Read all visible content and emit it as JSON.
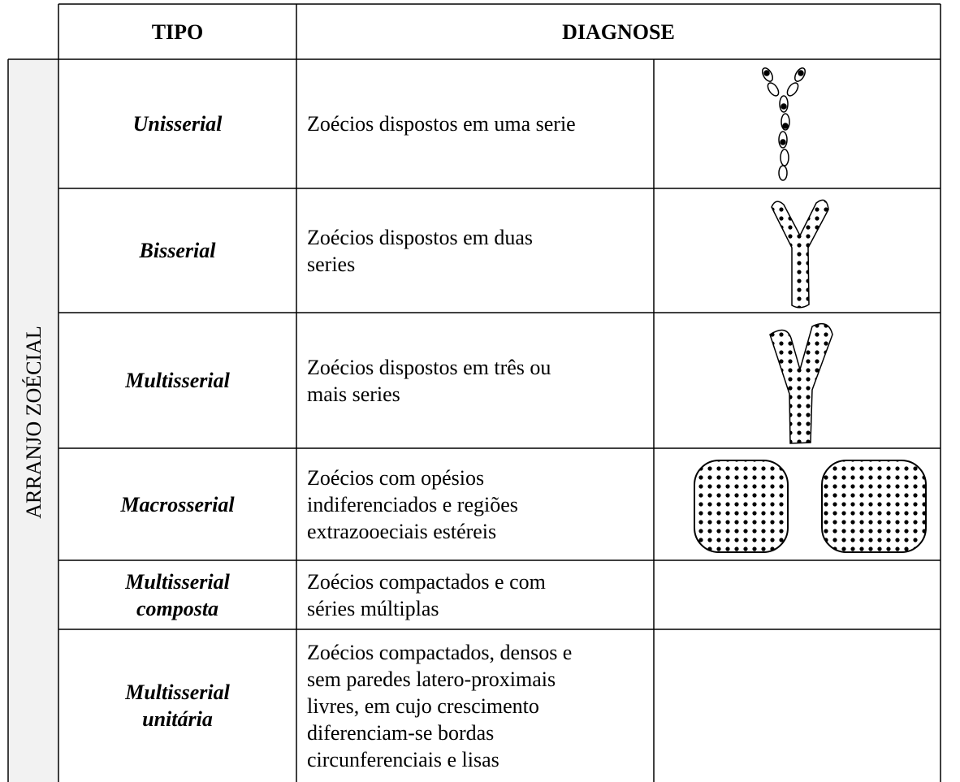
{
  "header": {
    "columns": [
      "TIPO",
      "DIAGNOSE"
    ]
  },
  "side_label": "ARRANJO ZOÉCIAL",
  "rows": [
    {
      "tipo": [
        "Unisserial"
      ],
      "diagnose": [
        "Zoécios dispostos em uma serie"
      ]
    },
    {
      "tipo": [
        "Bisserial"
      ],
      "diagnose": [
        "Zoécios dispostos em duas",
        "series"
      ]
    },
    {
      "tipo": [
        "Multisserial"
      ],
      "diagnose": [
        "Zoécios dispostos em três ou",
        "mais series"
      ]
    },
    {
      "tipo": [
        "Macrosserial"
      ],
      "diagnose": [
        "Zoécios com opésios",
        "indiferenciados e regiões",
        "extrazooeciais estéreis"
      ]
    },
    {
      "tipo": [
        "Multisserial",
        "composta"
      ],
      "diagnose": [
        "Zoécios compactados e com",
        "séries múltiplas"
      ]
    },
    {
      "tipo": [
        "Multisserial",
        "unitária"
      ],
      "diagnose": [
        "Zoécios compactados, densos e",
        "sem paredes latero-proximais",
        "livres, em cujo crescimento",
        "diferenciam-se bordas",
        "circunferenciais e lisas"
      ]
    }
  ]
}
